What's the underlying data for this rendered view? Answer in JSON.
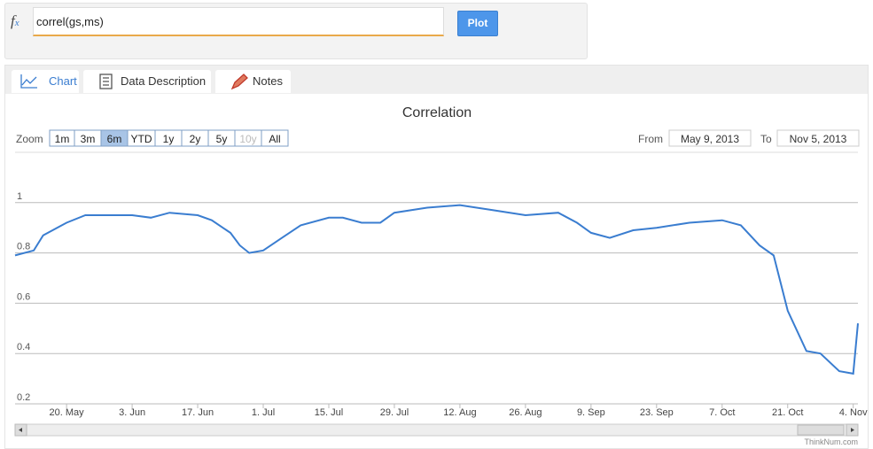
{
  "toolbar": {
    "formula": "correl(gs,ms)",
    "button": "Plot"
  },
  "tabs": [
    "Chart",
    "Data Description",
    "Notes"
  ],
  "zoom": {
    "label": "Zoom",
    "buttons": [
      "1m",
      "3m",
      "6m",
      "YTD",
      "1y",
      "2y",
      "5y",
      "10y",
      "All"
    ],
    "active": "6m",
    "disabled": "10y"
  },
  "range": {
    "from_label": "From",
    "from": "May 9, 2013",
    "to_label": "To",
    "to": "Nov 5, 2013"
  },
  "credit": "ThinkNum.com",
  "chart_data": {
    "type": "line",
    "title": "Correlation",
    "x": [
      "2013-05-09",
      "2013-05-13",
      "2013-05-15",
      "2013-05-20",
      "2013-05-24",
      "2013-05-28",
      "2013-06-03",
      "2013-06-07",
      "2013-06-11",
      "2013-06-17",
      "2013-06-20",
      "2013-06-24",
      "2013-06-26",
      "2013-06-28",
      "2013-07-01",
      "2013-07-05",
      "2013-07-09",
      "2013-07-15",
      "2013-07-18",
      "2013-07-22",
      "2013-07-26",
      "2013-07-29",
      "2013-08-05",
      "2013-08-12",
      "2013-08-19",
      "2013-08-26",
      "2013-09-02",
      "2013-09-06",
      "2013-09-09",
      "2013-09-13",
      "2013-09-18",
      "2013-09-23",
      "2013-09-30",
      "2013-10-07",
      "2013-10-11",
      "2013-10-15",
      "2013-10-18",
      "2013-10-21",
      "2013-10-25",
      "2013-10-28",
      "2013-11-01",
      "2013-11-04",
      "2013-11-05"
    ],
    "series": [
      {
        "name": "correl(gs,ms)",
        "color": "#3a7dd0",
        "values": [
          0.79,
          0.81,
          0.87,
          0.92,
          0.95,
          0.95,
          0.95,
          0.94,
          0.96,
          0.95,
          0.93,
          0.88,
          0.83,
          0.8,
          0.81,
          0.86,
          0.91,
          0.94,
          0.94,
          0.92,
          0.92,
          0.96,
          0.98,
          0.99,
          0.97,
          0.95,
          0.96,
          0.92,
          0.88,
          0.86,
          0.89,
          0.9,
          0.92,
          0.93,
          0.91,
          0.83,
          0.79,
          0.57,
          0.41,
          0.4,
          0.33,
          0.32,
          0.52
        ]
      }
    ],
    "xlim": [
      "2013-05-09",
      "2013-11-05"
    ],
    "xticks": [
      {
        "value": "2013-05-20",
        "label": "20. May"
      },
      {
        "value": "2013-06-03",
        "label": "3. Jun"
      },
      {
        "value": "2013-06-17",
        "label": "17. Jun"
      },
      {
        "value": "2013-07-01",
        "label": "1. Jul"
      },
      {
        "value": "2013-07-15",
        "label": "15. Jul"
      },
      {
        "value": "2013-07-29",
        "label": "29. Jul"
      },
      {
        "value": "2013-08-12",
        "label": "12. Aug"
      },
      {
        "value": "2013-08-26",
        "label": "26. Aug"
      },
      {
        "value": "2013-09-09",
        "label": "9. Sep"
      },
      {
        "value": "2013-09-23",
        "label": "23. Sep"
      },
      {
        "value": "2013-10-07",
        "label": "7. Oct"
      },
      {
        "value": "2013-10-21",
        "label": "21. Oct"
      },
      {
        "value": "2013-11-04",
        "label": "4. Nov"
      }
    ],
    "ylim": [
      0.2,
      1.2
    ],
    "yticks": [
      0.2,
      0.4,
      0.6,
      0.8,
      1
    ],
    "grid": true
  }
}
